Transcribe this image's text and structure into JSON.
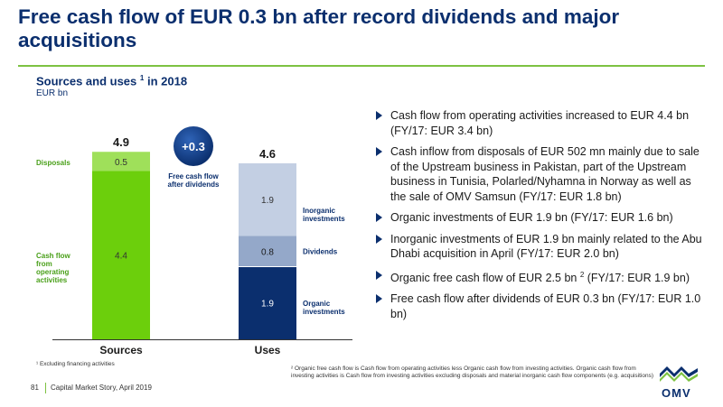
{
  "title": "Free cash flow of EUR 0.3 bn after record dividends and major acquisitions",
  "subtitle": "Sources and uses",
  "subtitle_sup": "1",
  "subtitle_suffix": " in 2018",
  "unit": "EUR bn",
  "colors": {
    "navy": "#0b2f6e",
    "green_dark": "#6ccf0c",
    "green_light": "#9fe05a",
    "blue_light": "#c3cfe3",
    "blue_mid": "#94a8c9",
    "label_green": "#4aa01a"
  },
  "chart_data": {
    "type": "bar",
    "stacked": true,
    "categories": [
      "Sources",
      "Uses"
    ],
    "series": [
      {
        "name": "Cash flow from operating activities",
        "category": "Sources",
        "value": 4.4,
        "label": "4.4"
      },
      {
        "name": "Disposals",
        "category": "Sources",
        "value": 0.5,
        "label": "0.5"
      },
      {
        "name": "Organic investments",
        "category": "Uses",
        "value": 1.9,
        "label": "1.9"
      },
      {
        "name": "Dividends",
        "category": "Uses",
        "value": 0.8,
        "label": "0.8"
      },
      {
        "name": "Inorganic investments",
        "category": "Uses",
        "value": 1.9,
        "label": "1.9"
      }
    ],
    "totals": [
      {
        "category": "Sources",
        "value": 4.9,
        "label": "4.9"
      },
      {
        "category": "Uses",
        "value": 4.6,
        "label": "4.6"
      }
    ],
    "ylim": [
      0,
      5.5
    ],
    "annotations": {
      "disposals": "Disposals",
      "cash_flow": [
        "Cash flow",
        "from",
        "operating",
        "activities"
      ],
      "inorganic": [
        "Inorganic",
        "investments"
      ],
      "dividends": "Dividends",
      "organic": [
        "Organic",
        "investments"
      ],
      "badge": "+0.3",
      "badge_caption": [
        "Free cash flow",
        "after dividends"
      ]
    }
  },
  "bullets": [
    {
      "text": "Cash flow from operating activities increased to EUR 4.4 bn (FY/17: EUR 3.4 bn)"
    },
    {
      "text": "Cash inflow from disposals of EUR 502 mn mainly due to sale of the Upstream business in Pakistan, part of the Upstream business in Tunisia, Polarled/Nyhamna in Norway as well as the sale of OMV Samsun (FY/17: EUR 1.8 bn)"
    },
    {
      "text": "Organic investments of EUR 1.9 bn (FY/17: EUR 1.6 bn)"
    },
    {
      "text": "Inorganic investments of EUR 1.9 bn mainly related to the Abu Dhabi acquisition in April (FY/17: EUR 2.0 bn)"
    },
    {
      "text_before": "Organic free cash flow of EUR 2.5 bn ",
      "sup": "2",
      "text_after": " (FY/17: EUR 1.9 bn)"
    },
    {
      "text": "Free cash flow after dividends of EUR 0.3 bn (FY/17: EUR 1.0 bn)"
    }
  ],
  "footnote1": "¹  Excluding financing activities",
  "footnote2": "² Organic free cash flow is Cash flow from operating activities less Organic cash flow from investing activities. Organic cash flow from investing activities is Cash flow from investing activities excluding disposals and material inorganic cash flow components (e.g. acquisitions)",
  "page_number": "81",
  "footer": "Capital Market Story, April 2019",
  "logo_text": "OMV"
}
